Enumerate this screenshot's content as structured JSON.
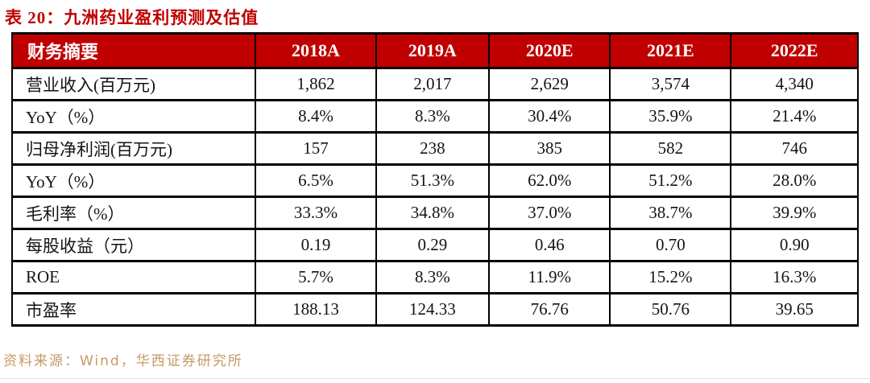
{
  "title": {
    "label": "表 20：九洲药业盈利预测及估值"
  },
  "table": {
    "header": [
      "财务摘要",
      "2018A",
      "2019A",
      "2020E",
      "2021E",
      "2022E"
    ],
    "rows": [
      {
        "label": "营业收入(百万元)",
        "values": [
          "1,862",
          "2,017",
          "2,629",
          "3,574",
          "4,340"
        ]
      },
      {
        "label": "YoY（%）",
        "values": [
          "8.4%",
          "8.3%",
          "30.4%",
          "35.9%",
          "21.4%"
        ]
      },
      {
        "label": "归母净利润(百万元)",
        "values": [
          "157",
          "238",
          "385",
          "582",
          "746"
        ]
      },
      {
        "label": "YoY（%）",
        "values": [
          "6.5%",
          "51.3%",
          "62.0%",
          "51.2%",
          "28.0%"
        ]
      },
      {
        "label": "毛利率（%）",
        "values": [
          "33.3%",
          "34.8%",
          "37.0%",
          "38.7%",
          "39.9%"
        ]
      },
      {
        "label": "每股收益（元）",
        "values": [
          "0.19",
          "0.29",
          "0.46",
          "0.70",
          "0.90"
        ]
      },
      {
        "label": "ROE",
        "values": [
          "5.7%",
          "8.3%",
          "11.9%",
          "15.2%",
          "16.3%"
        ]
      },
      {
        "label": "市盈率",
        "values": [
          "188.13",
          "124.33",
          "76.76",
          "50.76",
          "39.65"
        ]
      }
    ]
  },
  "source": {
    "label": "资料来源：Wind，华西证券研究所"
  },
  "colors": {
    "header_bg": "#C00000",
    "title_text": "#C00000",
    "header_text": "#FFFFFF",
    "body_text": "#141414",
    "source_text": "#C49A63",
    "border": "#000000"
  }
}
